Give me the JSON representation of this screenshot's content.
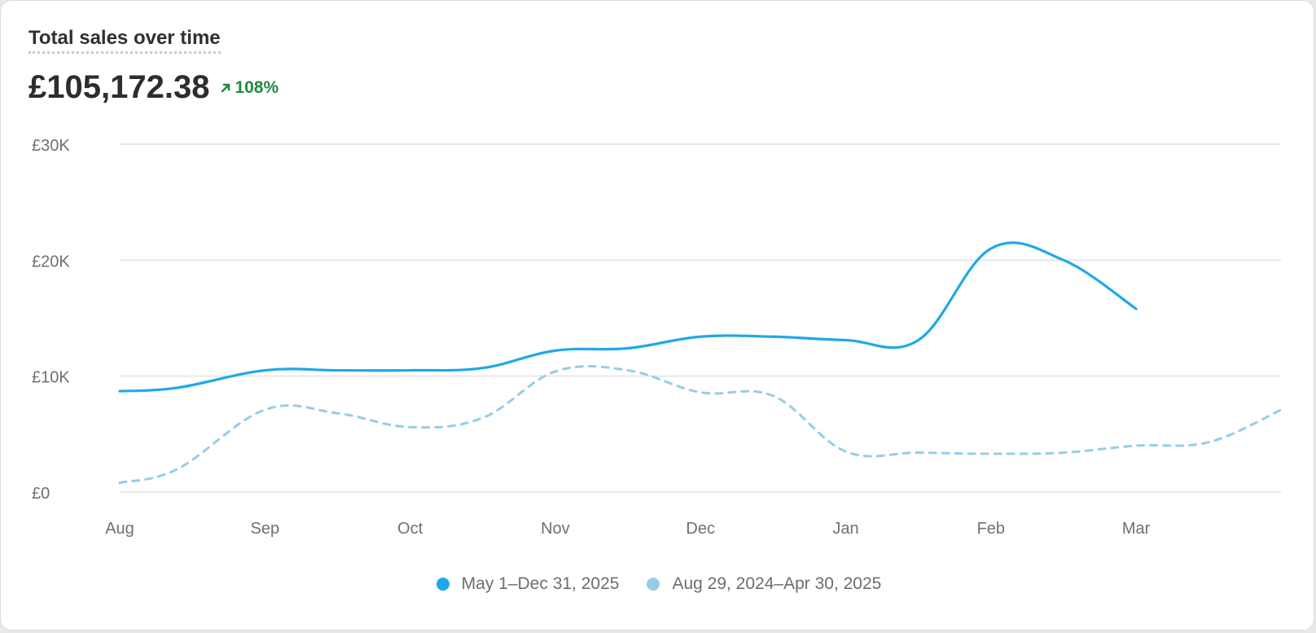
{
  "card": {
    "title": "Total sales over time",
    "total": "£105,172.38",
    "delta": "108%",
    "delta_icon": "arrow-up-right-icon"
  },
  "colors": {
    "current": "#20a8e8",
    "previous": "#95cde9",
    "grid": "#e8e8ea",
    "axis_text": "#6f6f75",
    "positive": "#1f8a45"
  },
  "chart_data": {
    "type": "line",
    "title": "Total sales over time",
    "xlabel": "",
    "ylabel": "",
    "categories": [
      "Aug",
      "Sep",
      "Oct",
      "Nov",
      "Dec",
      "Jan",
      "Feb",
      "Mar"
    ],
    "x": [
      0,
      0.4,
      1,
      1.5,
      2,
      2.5,
      3,
      3.5,
      4,
      4.5,
      5,
      5.5,
      6,
      6.5,
      7,
      7.5,
      8
    ],
    "y_ticks": [
      "£0",
      "£10K",
      "£20K",
      "£30K"
    ],
    "ylim": [
      0,
      30000
    ],
    "grid": true,
    "legend_position": "bottom",
    "series": [
      {
        "name": "May 1–Dec 31, 2025",
        "style": "solid",
        "x": [
          0,
          0.4,
          1,
          1.5,
          2,
          2.5,
          3,
          3.5,
          4,
          4.5,
          5,
          5.5,
          6,
          6.5,
          7
        ],
        "values": [
          8700,
          9000,
          10500,
          10500,
          10500,
          10700,
          12200,
          12400,
          13400,
          13400,
          13100,
          13100,
          21000,
          20000,
          15800
        ]
      },
      {
        "name": "Aug 29, 2024–Apr 30, 2025",
        "style": "dashed",
        "x": [
          0,
          0.4,
          1,
          1.5,
          2,
          2.5,
          3,
          3.5,
          4,
          4.5,
          5,
          5.5,
          6,
          6.5,
          7,
          7.5,
          8
        ],
        "values": [
          800,
          2000,
          7100,
          6800,
          5600,
          6400,
          10400,
          10500,
          8600,
          8300,
          3500,
          3400,
          3300,
          3400,
          4000,
          4300,
          7100
        ]
      }
    ]
  }
}
